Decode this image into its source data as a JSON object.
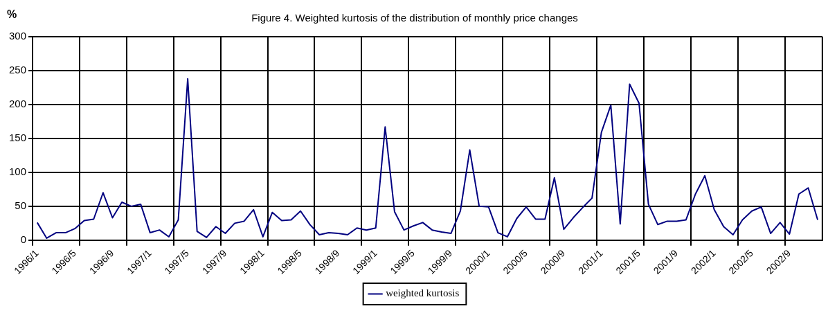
{
  "chart_data": {
    "type": "line",
    "title": "Figure 4. Weighted kurtosis of the distribution of monthly price changes",
    "ylabel": "%",
    "categories": [
      "1996/1",
      null,
      null,
      null,
      "1996/5",
      null,
      null,
      null,
      "1996/9",
      null,
      null,
      null,
      "1997/1",
      null,
      null,
      null,
      "1997/5",
      null,
      null,
      null,
      "1997/9",
      null,
      null,
      null,
      "1998/1",
      null,
      null,
      null,
      "1998/5",
      null,
      null,
      null,
      "1998/9",
      null,
      null,
      null,
      "1999/1",
      null,
      null,
      null,
      "1999/5",
      null,
      null,
      null,
      "1999/9",
      null,
      null,
      null,
      "2000/1",
      null,
      null,
      null,
      "2000/5",
      null,
      null,
      null,
      "2000/9",
      null,
      null,
      null,
      "2001/1",
      null,
      null,
      null,
      "2001/5",
      null,
      null,
      null,
      "2001/9",
      null,
      null,
      null,
      "2002/1",
      null,
      null,
      null,
      "2002/5",
      null,
      null,
      null,
      "2002/9",
      null,
      null,
      null
    ],
    "series": [
      {
        "name": "weighted kurtosis",
        "color": "#000080",
        "values": [
          26,
          3,
          11,
          11,
          17,
          29,
          31,
          70,
          33,
          56,
          50,
          53,
          11,
          15,
          5,
          30,
          238,
          13,
          4,
          20,
          10,
          25,
          28,
          45,
          5,
          41,
          29,
          30,
          43,
          23,
          8,
          11,
          10,
          8,
          18,
          15,
          18,
          167,
          42,
          15,
          21,
          26,
          15,
          12,
          10,
          43,
          133,
          50,
          49,
          11,
          5,
          32,
          49,
          31,
          31,
          92,
          16,
          33,
          48,
          62,
          159,
          199,
          24,
          230,
          202,
          53,
          23,
          28,
          28,
          30,
          68,
          95,
          45,
          20,
          8,
          30,
          43,
          49,
          10,
          26,
          9,
          68,
          77,
          30
        ]
      }
    ],
    "ylim": [
      0,
      300
    ],
    "yticks": [
      0,
      50,
      100,
      150,
      200,
      250,
      300
    ],
    "grid": true,
    "legend": "bottom",
    "marker": "none",
    "line_style": "solid"
  }
}
